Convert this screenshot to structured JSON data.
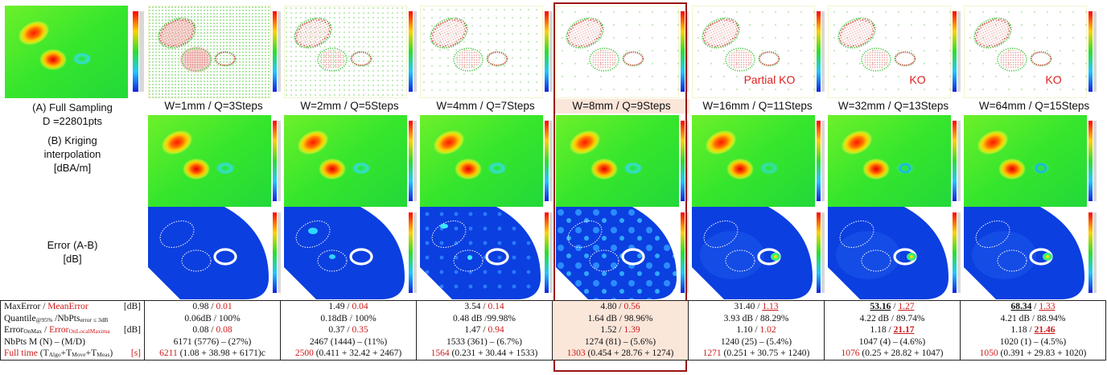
{
  "colors": {
    "selected_frame": "#9a1414",
    "selected_bg": "#fbe6da",
    "red_text": "#cc1a1a",
    "field_green": "#2ee82a",
    "error_blue": "#0b3fe0"
  },
  "full_sampling": {
    "label_line1": "(A) Full Sampling",
    "label_line2": "D =22801pts"
  },
  "row_labels": {
    "kriging_line1": "(B) Kriging",
    "kriging_line2": "interpolation",
    "kriging_line3": "[dBA/m]",
    "error_line1": "Error (A-B)",
    "error_line2": "[dB]"
  },
  "columns": [
    {
      "label": "W=1mm / Q=3Steps",
      "status": "",
      "max": "0.98",
      "mean": "0.01",
      "quant": "0.06dB / 100%",
      "onmax": "0.08",
      "onloc": "0.08",
      "nbpts": "6171 (5776) – (27%)",
      "time_total": "6211",
      "time_rest": "(1.08 + 38.98 + 6171)c"
    },
    {
      "label": "W=2mm / Q=5Steps",
      "status": "",
      "max": "1.49",
      "mean": "0.04",
      "quant": "0.18dB / 100%",
      "onmax": "0.37",
      "onloc": "0.35",
      "nbpts": "2467 (1444) – (11%)",
      "time_total": "2500",
      "time_rest": "(0.411 + 32.42 + 2467)"
    },
    {
      "label": "W=4mm / Q=7Steps",
      "status": "",
      "max": "3.54",
      "mean": "0.14",
      "quant": "0.48 dB /99.98%",
      "onmax": "1.47",
      "onloc": "0.94",
      "nbpts": "1533 (361) – (6.7%)",
      "time_total": "1564",
      "time_rest": "(0.231 + 30.44 + 1533)"
    },
    {
      "label": "W=8mm / Q=9Steps",
      "status": "",
      "max": "4.80",
      "mean": "0.56",
      "quant": "1.64 dB / 98.96%",
      "onmax": "1.52",
      "onloc": "1.39",
      "nbpts": "1274 (81) – (5.6%)",
      "time_total": "1303",
      "time_rest": "(0.454 + 28.76 + 1274)"
    },
    {
      "label": "W=16mm / Q=11Steps",
      "status": "Partial KO",
      "max": "31.40",
      "mean": "1.13",
      "quant": "3.93 dB / 88.29%",
      "onmax": "1.10",
      "onloc": "1.02",
      "nbpts": "1240 (25) – (5.4%)",
      "time_total": "1271",
      "time_rest": "(0.251 + 30.75 + 1240)"
    },
    {
      "label": "W=32mm / Q=13Steps",
      "status": "KO",
      "max": "53.16",
      "mean": "1.27",
      "quant": "4.22 dB / 89.74%",
      "onmax": "1.18",
      "onloc": "21.17",
      "nbpts": "1047 (4) – (4.6%)",
      "time_total": "1076",
      "time_rest": "(0.25 + 28.82 + 1047)"
    },
    {
      "label": "W=64mm / Q=15Steps",
      "status": "KO",
      "max": "68.34",
      "mean": "1.33",
      "quant": "4.21 dB / 88.94%",
      "onmax": "1.18",
      "onloc": "21.46",
      "nbpts": "1020 (1) – (4.5%)",
      "time_total": "1050",
      "time_rest": "(0.391 + 29.83 + 1020)"
    }
  ],
  "table_header": {
    "line1_a": "MaxError",
    "line1_b": "MeanError",
    "line1_unit": "[dB]",
    "line2_a": "Quantile",
    "line2_sub": "@95%",
    "line2_b": "/NbPts",
    "line2_sub2": "error ≤ 3dB",
    "line3_a": "Error",
    "line3_sub": "OnMax",
    "line3_b": "Error",
    "line3_sub2": "OnLocalMaxima",
    "line3_unit": "[dB]",
    "line4": "NbPts M (N) – (M/D)",
    "line5_a": "Full time",
    "line5_b": "(T",
    "line5_sub1": "Algo",
    "line5_c": "+T",
    "line5_sub2": "Move",
    "line5_d": "+T",
    "line5_sub3": "Meas",
    "line5_e": ")",
    "line5_unit": "[s]"
  }
}
